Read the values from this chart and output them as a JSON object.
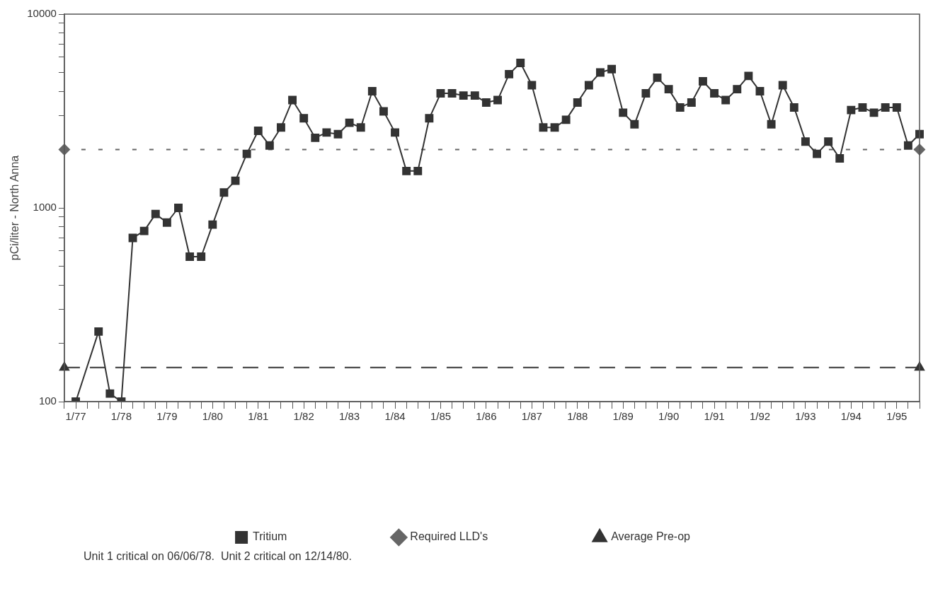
{
  "chart_data": {
    "type": "line",
    "ylabel": "pCi/liter - North Anna",
    "categories": [
      null,
      "1/77",
      null,
      null,
      null,
      "1/78",
      null,
      null,
      null,
      "1/79",
      null,
      null,
      null,
      "1/80",
      null,
      null,
      null,
      "1/81",
      null,
      null,
      null,
      "1/82",
      null,
      null,
      null,
      "1/83",
      null,
      null,
      null,
      "1/84",
      null,
      null,
      null,
      "1/85",
      null,
      null,
      null,
      "1/86",
      null,
      null,
      null,
      "1/87",
      null,
      null,
      null,
      "1/88",
      null,
      null,
      null,
      "1/89",
      null,
      null,
      null,
      "1/90",
      null,
      null,
      null,
      "1/91",
      null,
      null,
      null,
      "1/92",
      null,
      null,
      null,
      "1/93",
      null,
      null,
      null,
      "1/94",
      null,
      null,
      null,
      "1/95",
      null,
      null
    ],
    "series": [
      {
        "name": "Tritium",
        "color": "#333333",
        "marker": "square",
        "line_style": "solid",
        "values": [
          null,
          100,
          null,
          230,
          110,
          100,
          700,
          760,
          930,
          840,
          1000,
          560,
          560,
          820,
          1200,
          1380,
          1900,
          2500,
          2100,
          2600,
          3600,
          2900,
          2300,
          2450,
          2400,
          2750,
          2600,
          4000,
          3150,
          2450,
          1550,
          1550,
          2900,
          3900,
          3900,
          3800,
          3800,
          3500,
          3600,
          4900,
          5600,
          4300,
          2600,
          2600,
          2850,
          3500,
          4300,
          5000,
          5200,
          3100,
          2700,
          3900,
          4700,
          4100,
          3300,
          3500,
          4500,
          3900,
          3600,
          4100,
          4800,
          4000,
          2700,
          4300,
          3300,
          2200,
          1900,
          2200,
          1800,
          3200,
          3300,
          3100,
          3300,
          3300,
          2100,
          2400
        ]
      },
      {
        "name": "Required LLD's",
        "color": "#666666",
        "marker": "diamond",
        "line_style": "dotted",
        "values": [
          2000,
          null,
          null,
          null,
          null,
          null,
          null,
          null,
          null,
          null,
          null,
          null,
          null,
          null,
          null,
          null,
          null,
          null,
          null,
          null,
          null,
          null,
          null,
          null,
          null,
          null,
          null,
          null,
          null,
          null,
          null,
          null,
          null,
          null,
          null,
          null,
          null,
          null,
          null,
          null,
          null,
          null,
          null,
          null,
          null,
          null,
          null,
          null,
          null,
          null,
          null,
          null,
          null,
          null,
          null,
          null,
          null,
          null,
          null,
          null,
          null,
          null,
          null,
          null,
          null,
          null,
          null,
          null,
          null,
          null,
          null,
          null,
          null,
          null,
          null,
          2000
        ]
      },
      {
        "name": "Average Pre-op",
        "color": "#333333",
        "marker": "triangle",
        "line_style": "dashed",
        "values": [
          150,
          null,
          null,
          null,
          null,
          null,
          null,
          null,
          null,
          null,
          null,
          null,
          null,
          null,
          null,
          null,
          null,
          null,
          null,
          null,
          null,
          null,
          null,
          null,
          null,
          null,
          null,
          null,
          null,
          null,
          null,
          null,
          null,
          null,
          null,
          null,
          null,
          null,
          null,
          null,
          null,
          null,
          null,
          null,
          null,
          null,
          null,
          null,
          null,
          null,
          null,
          null,
          null,
          null,
          null,
          null,
          null,
          null,
          null,
          null,
          null,
          null,
          null,
          null,
          null,
          null,
          null,
          null,
          null,
          null,
          null,
          null,
          null,
          null,
          null,
          150
        ]
      }
    ],
    "log": true,
    "ylim": [
      100,
      10000
    ],
    "yticks": [
      100,
      {
        "value": 200,
        "label": null
      },
      {
        "value": 300,
        "label": null
      },
      {
        "value": 400,
        "label": null
      },
      {
        "value": 500,
        "label": null
      },
      {
        "value": 600,
        "label": null
      },
      {
        "value": 700,
        "label": null
      },
      {
        "value": 800,
        "label": null
      },
      {
        "value": 900,
        "label": null
      },
      1000,
      {
        "value": 2000,
        "label": null
      },
      {
        "value": 3000,
        "label": null
      },
      {
        "value": 4000,
        "label": null
      },
      {
        "value": 5000,
        "label": null
      },
      {
        "value": 6000,
        "label": null
      },
      {
        "value": 7000,
        "label": null
      },
      {
        "value": 8000,
        "label": null
      },
      {
        "value": 9000,
        "label": null
      },
      10000
    ],
    "grid": false,
    "legend": "bottom",
    "annotations": [
      "Unit 1 critical on 06/06/78.  Unit 2 critical on 12/14/80."
    ]
  }
}
